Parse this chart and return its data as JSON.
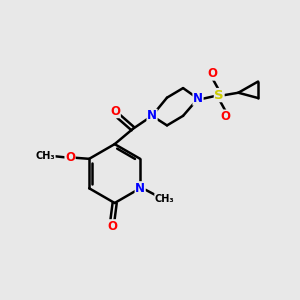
{
  "bg_color": "#e8e8e8",
  "atom_colors": {
    "N": "#0000ff",
    "O": "#ff0000",
    "S": "#cccc00"
  },
  "bond_color": "#000000",
  "line_width": 1.8,
  "figsize": [
    3.0,
    3.0
  ],
  "dpi": 100
}
